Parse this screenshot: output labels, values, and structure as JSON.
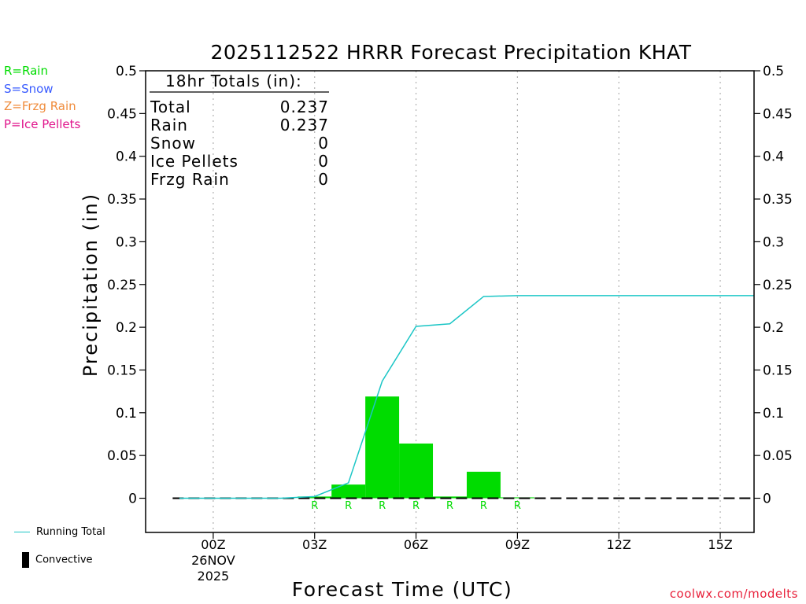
{
  "colors": {
    "rain": "#00dc00",
    "snow": "#3a5cff",
    "frzg_rain": "#f08c3c",
    "ice_pellets": "#e0158c",
    "running_total": "#1cc6c6",
    "convective": "#000000",
    "credit": "#e8203a"
  },
  "type_legend": {
    "rain": "R=Rain",
    "snow": "S=Snow",
    "frzg_rain": "Z=Frzg Rain",
    "ice_pellets": "P=Ice Pellets"
  },
  "bottom_legend": {
    "running_total": "Running Total",
    "convective": "Convective"
  },
  "credit": "coolwx.com/modelts",
  "chart_data": {
    "type": "bar",
    "title": "2025112522 HRRR Forecast Precipitation KHAT",
    "xlabel": "Forecast Time (UTC)",
    "ylabel": "Precipitation (in)",
    "ylim": [
      -0.04,
      0.5
    ],
    "yticks": [
      0,
      0.05,
      0.1,
      0.15,
      0.2,
      0.25,
      0.3,
      0.35,
      0.4,
      0.45,
      0.5
    ],
    "ytick_labels": [
      "0",
      "0.05",
      "0.1",
      "0.15",
      "0.2",
      "0.25",
      "0.3",
      "0.35",
      "0.4",
      "0.45",
      "0.5"
    ],
    "x_unit": "hours since 2025-11-26 00Z",
    "xlim": [
      -2.0,
      16.0
    ],
    "xticks": [
      {
        "x": 0,
        "label": "00Z",
        "sub1": "26NOV",
        "sub2": "2025"
      },
      {
        "x": 3,
        "label": "03Z",
        "sub1": "",
        "sub2": ""
      },
      {
        "x": 6,
        "label": "06Z",
        "sub1": "",
        "sub2": ""
      },
      {
        "x": 9,
        "label": "09Z",
        "sub1": "",
        "sub2": ""
      },
      {
        "x": 12,
        "label": "12Z",
        "sub1": "",
        "sub2": ""
      },
      {
        "x": 15,
        "label": "15Z",
        "sub1": "",
        "sub2": ""
      }
    ],
    "hourly_precip": {
      "name": "Rain",
      "x": [
        -1,
        0,
        1,
        2,
        3,
        4,
        5,
        6,
        7,
        8,
        9,
        10,
        11,
        12,
        13,
        14,
        15
      ],
      "values": [
        0,
        0,
        0,
        0,
        0.002,
        0.016,
        0.119,
        0.064,
        0.002,
        0.031,
        0.001,
        0,
        0,
        0,
        0,
        0,
        0
      ],
      "type_marks": [
        "",
        "",
        "",
        "",
        "R",
        "R",
        "R",
        "R",
        "R",
        "R",
        "R",
        "",
        "",
        "",
        "",
        "",
        ""
      ]
    },
    "running_total": {
      "name": "Running Total",
      "x": [
        -1,
        0,
        1,
        2,
        3,
        4,
        5,
        6,
        7,
        8,
        9,
        10,
        11,
        12,
        13,
        14,
        15,
        16
      ],
      "values": [
        0,
        0,
        0,
        0,
        0.002,
        0.018,
        0.137,
        0.201,
        0.204,
        0.236,
        0.237,
        0.237,
        0.237,
        0.237,
        0.237,
        0.237,
        0.237,
        0.237
      ]
    },
    "totals_box": {
      "header": "18hr Totals (in):",
      "rows": [
        {
          "label": "Total",
          "value": "0.237"
        },
        {
          "label": "Rain",
          "value": "0.237"
        },
        {
          "label": "Snow",
          "value": "0"
        },
        {
          "label": "Ice Pellets",
          "value": "0"
        },
        {
          "label": "Frzg Rain",
          "value": "0"
        }
      ]
    }
  }
}
